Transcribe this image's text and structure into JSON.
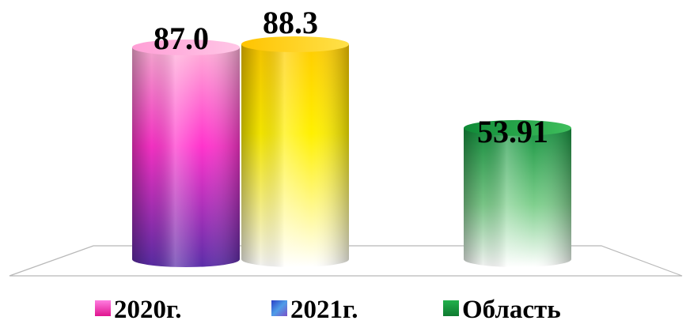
{
  "chart_data": {
    "type": "bar",
    "style": "3d-cylinder",
    "categories": [
      "2020г.",
      "2021г.",
      "Область"
    ],
    "values": [
      87.0,
      88.3,
      53.91
    ],
    "data_labels": [
      "87.0",
      "88.3",
      "53.91"
    ],
    "legend": {
      "placement": "bottom",
      "entries": [
        "2020г.",
        "2021г.",
        "Область"
      ]
    },
    "colors": [
      "#ff33cc",
      "#ffd200",
      "#1a9e3a"
    ],
    "legend_colors": [
      "#ff33cc",
      "#3a4fd6",
      "#22b14c"
    ],
    "title": "",
    "xlabel": "",
    "ylabel": "",
    "ylim": [
      0,
      100
    ],
    "grid": false
  }
}
